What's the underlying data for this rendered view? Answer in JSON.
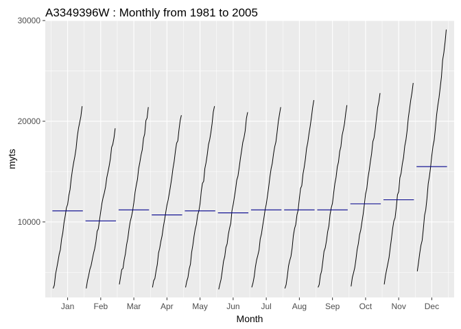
{
  "chart_data": {
    "type": "line",
    "title": "A3349396W :  Monthly from 1981 to 2005",
    "xlabel": "Month",
    "ylabel": "myts",
    "categories": [
      "Jan",
      "Feb",
      "Mar",
      "Apr",
      "May",
      "Jun",
      "Jul",
      "Aug",
      "Sep",
      "Oct",
      "Nov",
      "Dec"
    ],
    "x_years": [
      1981,
      2005
    ],
    "ylim": [
      2500,
      30000
    ],
    "yticks": [
      10000,
      20000,
      30000
    ],
    "ytick_labels": [
      "10000",
      "20000",
      "30000"
    ],
    "grid": true,
    "series": [
      {
        "category": "Jan",
        "start": 3400,
        "end": 21500,
        "mean": 11100
      },
      {
        "category": "Feb",
        "start": 3400,
        "end": 19300,
        "mean": 10100
      },
      {
        "category": "Mar",
        "start": 3800,
        "end": 21400,
        "mean": 11200
      },
      {
        "category": "Apr",
        "start": 3500,
        "end": 20600,
        "mean": 10700
      },
      {
        "category": "May",
        "start": 3500,
        "end": 21500,
        "mean": 11100
      },
      {
        "category": "Jun",
        "start": 3300,
        "end": 20900,
        "mean": 10900
      },
      {
        "category": "Jul",
        "start": 3500,
        "end": 21400,
        "mean": 11200
      },
      {
        "category": "Aug",
        "start": 3400,
        "end": 22100,
        "mean": 11200
      },
      {
        "category": "Sep",
        "start": 3500,
        "end": 21600,
        "mean": 11200
      },
      {
        "category": "Oct",
        "start": 3600,
        "end": 22800,
        "mean": 11800
      },
      {
        "category": "Nov",
        "start": 3800,
        "end": 23800,
        "mean": 12200
      },
      {
        "category": "Dec",
        "start": 5100,
        "end": 29100,
        "mean": 15500
      }
    ],
    "colors": {
      "panel": "#ebebeb",
      "grid": "#ffffff",
      "series_line": "#000000",
      "mean_line": "#00008b",
      "tick": "#333333"
    }
  }
}
